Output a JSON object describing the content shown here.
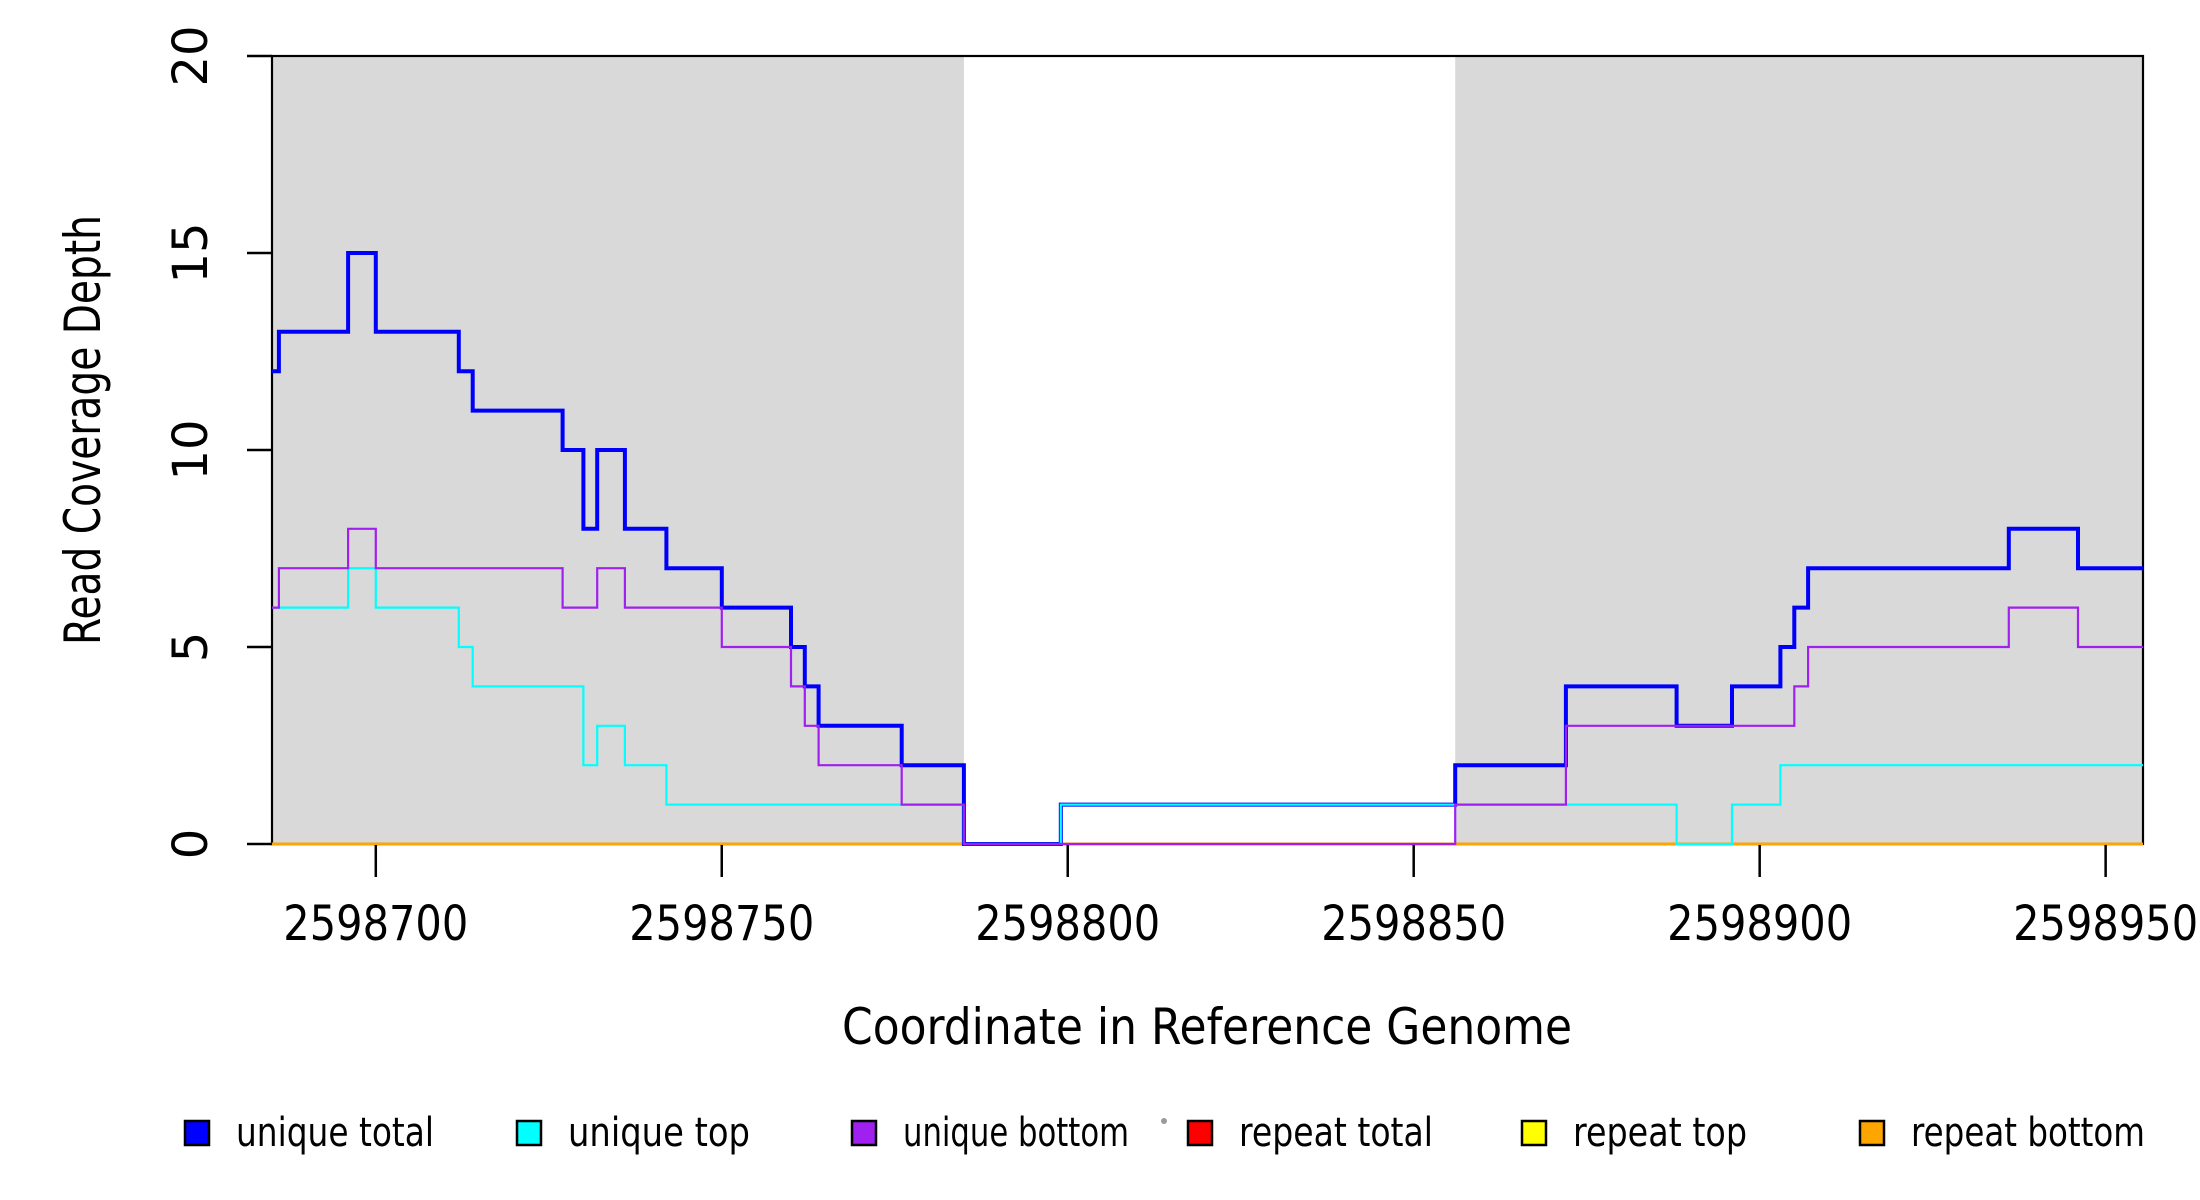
{
  "chart_data": {
    "type": "step-line",
    "title": "",
    "xlabel": "Coordinate in Reference Genome",
    "ylabel": "Read Coverage Depth",
    "x_range": [
      2598685,
      2598955.4
    ],
    "y_range": [
      0,
      20
    ],
    "grid": false,
    "background_color": "#FFFFFF",
    "shading_color": "#D9D9D9",
    "shaded_regions": [
      {
        "from": 2598685,
        "to": 2598785
      },
      {
        "from": 2598856,
        "to": 2598955.4
      }
    ],
    "x_ticks": [
      {
        "value": 2598700,
        "label": "2598700"
      },
      {
        "value": 2598750,
        "label": "2598750"
      },
      {
        "value": 2598800,
        "label": "2598800"
      },
      {
        "value": 2598850,
        "label": "2598850"
      },
      {
        "value": 2598900,
        "label": "2598900"
      },
      {
        "value": 2598950,
        "label": "2598950"
      }
    ],
    "y_ticks": [
      {
        "value": 0,
        "label": "0"
      },
      {
        "value": 5,
        "label": "5"
      },
      {
        "value": 10,
        "label": "10"
      },
      {
        "value": 15,
        "label": "15"
      },
      {
        "value": 20,
        "label": "20"
      }
    ],
    "series": [
      {
        "name": "repeat total",
        "color": "#FF0000",
        "width": 3.0,
        "points": [
          [
            2598685,
            0
          ]
        ],
        "end": 2598955.4
      },
      {
        "name": "repeat top",
        "color": "#FFFF00",
        "width": 2.4,
        "points": [
          [
            2598685,
            0
          ]
        ],
        "end": 2598955.4
      },
      {
        "name": "repeat bottom",
        "color": "#FFA500",
        "width": 2.8,
        "points": [
          [
            2598685,
            0
          ]
        ],
        "end": 2598955.4
      },
      {
        "name": "unique total",
        "color": "#0000FA",
        "width": 4.0,
        "points": [
          [
            2598685,
            12
          ],
          [
            2598686,
            13
          ],
          [
            2598696,
            15
          ],
          [
            2598700,
            13
          ],
          [
            2598712,
            12
          ],
          [
            2598714,
            11
          ],
          [
            2598727,
            10
          ],
          [
            2598730,
            8
          ],
          [
            2598732,
            10
          ],
          [
            2598736,
            8
          ],
          [
            2598742,
            7
          ],
          [
            2598750,
            6
          ],
          [
            2598760,
            5
          ],
          [
            2598762,
            4
          ],
          [
            2598764,
            3
          ],
          [
            2598776,
            2
          ],
          [
            2598785,
            0
          ],
          [
            2598799,
            1
          ],
          [
            2598856,
            2
          ],
          [
            2598872,
            4
          ],
          [
            2598888,
            3
          ],
          [
            2598896,
            4
          ],
          [
            2598903,
            5
          ],
          [
            2598905,
            6
          ],
          [
            2598907,
            7
          ],
          [
            2598936,
            8
          ],
          [
            2598946,
            7
          ]
        ],
        "end": 2598955.4
      },
      {
        "name": "unique top",
        "color": "#00FFFF",
        "width": 2.2,
        "points": [
          [
            2598685,
            6
          ],
          [
            2598696,
            7
          ],
          [
            2598700,
            6
          ],
          [
            2598712,
            5
          ],
          [
            2598714,
            4
          ],
          [
            2598730,
            2
          ],
          [
            2598732,
            3
          ],
          [
            2598736,
            2
          ],
          [
            2598742,
            1
          ],
          [
            2598785,
            0
          ],
          [
            2598799,
            1
          ],
          [
            2598888,
            0
          ],
          [
            2598896,
            1
          ],
          [
            2598903,
            2
          ]
        ],
        "end": 2598955.4
      },
      {
        "name": "unique bottom",
        "color": "#A020F0",
        "width": 2.2,
        "points": [
          [
            2598685,
            6
          ],
          [
            2598686,
            7
          ],
          [
            2598696,
            8
          ],
          [
            2598700,
            7
          ],
          [
            2598727,
            6
          ],
          [
            2598732,
            7
          ],
          [
            2598736,
            6
          ],
          [
            2598750,
            5
          ],
          [
            2598760,
            4
          ],
          [
            2598762,
            3
          ],
          [
            2598764,
            2
          ],
          [
            2598776,
            1
          ],
          [
            2598785,
            0
          ],
          [
            2598856,
            1
          ],
          [
            2598872,
            3
          ],
          [
            2598905,
            4
          ],
          [
            2598907,
            5
          ],
          [
            2598936,
            6
          ],
          [
            2598946,
            5
          ]
        ],
        "end": 2598955.4
      }
    ],
    "legend": {
      "position": "bottom",
      "items": [
        {
          "label": "unique total",
          "color": "#0000FF"
        },
        {
          "label": "unique top",
          "color": "#00FFFF"
        },
        {
          "label": "unique bottom",
          "color": "#A020F0"
        },
        {
          "label": "repeat total",
          "color": "#FF0000"
        },
        {
          "label": "repeat top",
          "color": "#FFFF00"
        },
        {
          "label": "repeat bottom",
          "color": "#FFA500"
        }
      ]
    }
  }
}
